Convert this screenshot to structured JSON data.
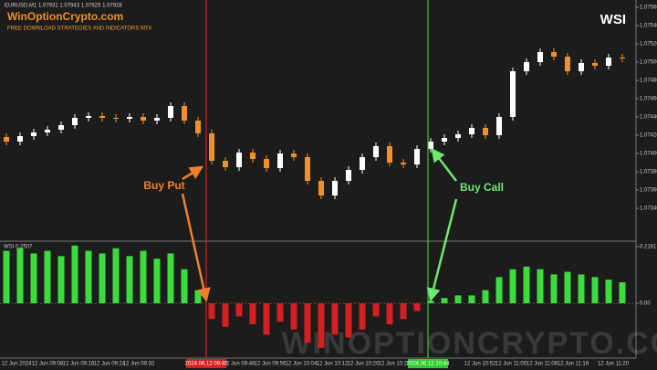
{
  "header": {
    "symbol_info": "EURUSD,M1 1.07931 1.07943 1.07925 1.07928",
    "brand": "WinOptionCrypto.com",
    "tagline": "FREE DOWNLOAD STRATEGIES AND INDICATORS MT4",
    "badge": "WSI"
  },
  "watermark": "WINOPTIONCRYPTO.COM",
  "chart_data": [
    {
      "type": "candlestick",
      "open": [
        1.07418,
        1.07413,
        1.07419,
        1.07423,
        1.07426,
        1.07431,
        1.07439,
        1.07441,
        1.07439,
        1.07438,
        1.0744,
        1.07436,
        1.07439,
        1.07452,
        1.07436,
        1.07422,
        1.07392,
        1.07385,
        1.07401,
        1.07394,
        1.07384,
        1.074,
        1.07396,
        1.0737,
        1.07354,
        1.0737,
        1.07382,
        1.07396,
        1.07408,
        1.0739,
        1.07388,
        1.07405,
        1.07413,
        1.07417,
        1.07421,
        1.07428,
        1.0742,
        1.0744,
        1.0749,
        1.075,
        1.07511,
        1.07506,
        1.0749,
        1.07499,
        1.07496,
        1.07505
      ],
      "high": [
        1.07422,
        1.07423,
        1.07427,
        1.0743,
        1.07435,
        1.07443,
        1.07445,
        1.07445,
        1.07443,
        1.07444,
        1.07444,
        1.07443,
        1.07456,
        1.07456,
        1.0744,
        1.07426,
        1.07396,
        1.07405,
        1.07405,
        1.07398,
        1.07404,
        1.07404,
        1.074,
        1.07374,
        1.07374,
        1.07386,
        1.074,
        1.07412,
        1.07412,
        1.07394,
        1.07409,
        1.07417,
        1.07421,
        1.07425,
        1.07432,
        1.07432,
        1.07444,
        1.07494,
        1.07504,
        1.07515,
        1.07515,
        1.0751,
        1.07503,
        1.07503,
        1.07509,
        1.07509
      ],
      "low": [
        1.07409,
        1.07409,
        1.07415,
        1.07419,
        1.07422,
        1.07427,
        1.07435,
        1.07435,
        1.07434,
        1.07434,
        1.07432,
        1.07432,
        1.07435,
        1.07432,
        1.07418,
        1.07388,
        1.07381,
        1.07381,
        1.0739,
        1.0738,
        1.0738,
        1.07392,
        1.07366,
        1.0735,
        1.0735,
        1.07366,
        1.07378,
        1.07392,
        1.07386,
        1.07384,
        1.07384,
        1.07401,
        1.07409,
        1.07413,
        1.07417,
        1.07416,
        1.07416,
        1.07436,
        1.07486,
        1.07496,
        1.07502,
        1.07486,
        1.07486,
        1.07492,
        1.07492,
        1.075
      ],
      "close": [
        1.07413,
        1.07419,
        1.07423,
        1.07426,
        1.07431,
        1.07439,
        1.07441,
        1.07439,
        1.07438,
        1.0744,
        1.07436,
        1.07439,
        1.07452,
        1.07436,
        1.07422,
        1.07392,
        1.07385,
        1.07401,
        1.07394,
        1.07384,
        1.074,
        1.07396,
        1.0737,
        1.07354,
        1.0737,
        1.07382,
        1.07396,
        1.07408,
        1.0739,
        1.07388,
        1.07405,
        1.07413,
        1.07417,
        1.07421,
        1.07428,
        1.0742,
        1.0744,
        1.0749,
        1.075,
        1.07511,
        1.07506,
        1.0749,
        1.07499,
        1.07496,
        1.07505,
        1.07504
      ],
      "up_color": "#ffffff",
      "down_color": "#f0902a",
      "ylim": [
        1.07305,
        1.07568
      ],
      "yticks": [
        {
          "value": 1.0756,
          "label": "1.07560"
        },
        {
          "value": 1.0754,
          "label": "1.07540"
        },
        {
          "value": 1.0752,
          "label": "1.07520"
        },
        {
          "value": 1.075,
          "label": "1.07500"
        },
        {
          "value": 1.0748,
          "label": "1.07480"
        },
        {
          "value": 1.0746,
          "label": "1.07460"
        },
        {
          "value": 1.0744,
          "label": "1.07440"
        },
        {
          "value": 1.0742,
          "label": "1.07420"
        },
        {
          "value": 1.074,
          "label": "1.07400"
        },
        {
          "value": 1.0738,
          "label": "1.07380"
        },
        {
          "value": 1.0736,
          "label": "1.07360"
        },
        {
          "value": 1.0734,
          "label": "1.07340"
        }
      ],
      "x_labels": [
        "12 Jun 2024",
        "12 Jun 09:08",
        "12 Jun 09:16",
        "12 Jun 09:24",
        "12 Jun 09:32",
        "12 Jun 09:48",
        "12 Jun 09:56",
        "12 Jun 10:04",
        "12 Jun 10:12",
        "12 Jun 10:20",
        "12 Jun 10:28",
        "12 Jun 10:52",
        "12 Jun 11:00",
        "12 Jun 11:08",
        "12 Jun 11:16",
        "12 Jun 11:20"
      ],
      "markers": [
        {
          "label": "2024.06.12 09:40",
          "color": "#d42020"
        },
        {
          "label": "2024.06.12 10:44",
          "color": "#2ecc2e"
        }
      ],
      "annotations": [
        {
          "text": "Buy Put",
          "color": "#f0802a"
        },
        {
          "text": "Buy Call",
          "color": "#6fe86f"
        }
      ]
    },
    {
      "type": "bar",
      "title": "WSI 0.2507",
      "values": [
        0.2,
        0.21,
        0.19,
        0.2,
        0.18,
        0.22,
        0.2,
        0.19,
        0.21,
        0.18,
        0.2,
        0.17,
        0.19,
        0.13,
        0.05,
        -0.06,
        -0.09,
        -0.05,
        -0.08,
        -0.12,
        -0.07,
        -0.1,
        -0.15,
        -0.17,
        -0.12,
        -0.13,
        -0.1,
        -0.05,
        -0.08,
        -0.06,
        -0.03,
        0.01,
        0.02,
        0.03,
        0.03,
        0.05,
        0.1,
        0.13,
        0.14,
        0.13,
        0.11,
        0.12,
        0.11,
        0.1,
        0.09,
        0.08
      ],
      "pos_color": "#3ddc3d",
      "neg_color": "#d42020",
      "ylim": [
        -0.2021,
        0.2334
      ],
      "yticks": [
        0.2161,
        {
          "value": 0,
          "label": "0.00"
        }
      ]
    }
  ]
}
